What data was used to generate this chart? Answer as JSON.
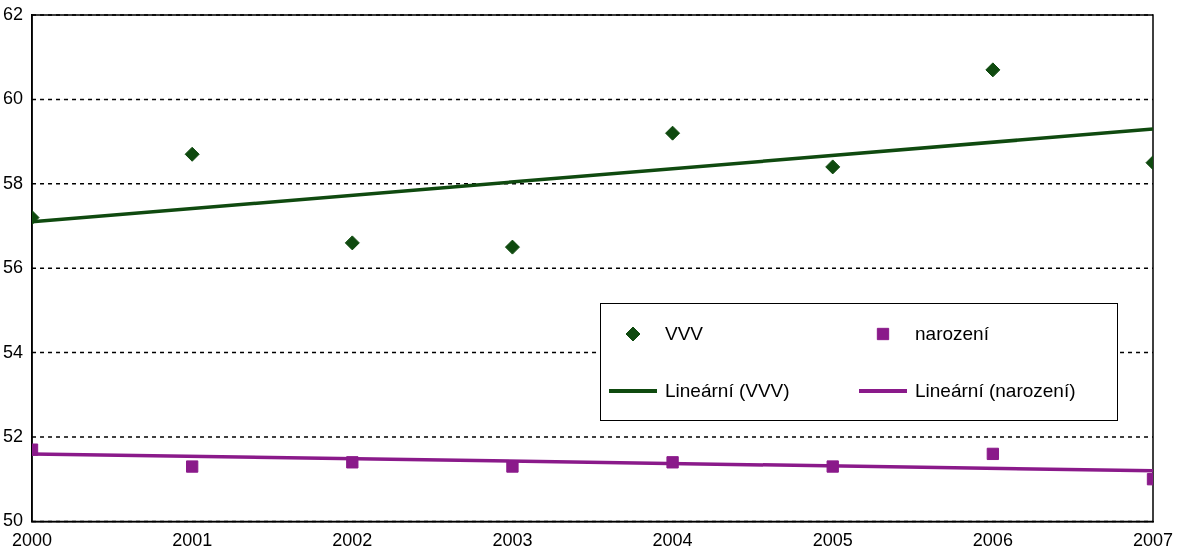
{
  "chart_data": {
    "type": "scatter",
    "xlim": [
      2000,
      2007
    ],
    "xticks": [
      2000,
      2001,
      2002,
      2003,
      2004,
      2005,
      2006,
      2007
    ],
    "ylim": [
      50,
      62
    ],
    "yticks": [
      50,
      52,
      54,
      56,
      58,
      60,
      62
    ],
    "grid": "y",
    "legend": "bottom right",
    "series": [
      {
        "name": "VVV",
        "type": "scatter",
        "marker": "diamond",
        "color": "#0f4a0f",
        "x": [
          2000,
          2001,
          2002,
          2003,
          2004,
          2005,
          2006,
          2007
        ],
        "values": [
          57.2,
          58.7,
          56.6,
          56.5,
          59.2,
          58.4,
          60.7,
          58.5
        ]
      },
      {
        "name": "narození",
        "type": "scatter",
        "marker": "square",
        "color": "#8a1a8a",
        "x": [
          2000,
          2001,
          2002,
          2003,
          2004,
          2005,
          2006,
          2007
        ],
        "values": [
          51.7,
          51.3,
          51.4,
          51.3,
          51.4,
          51.3,
          51.6,
          51.0
        ]
      },
      {
        "name": "Lineární (VVV)",
        "type": "line",
        "marker": "none",
        "line_style": "solid",
        "color": "#0f4a0f",
        "x": [
          2000,
          2007
        ],
        "values": [
          57.1,
          59.3
        ]
      },
      {
        "name": "Lineární (narození)",
        "type": "line",
        "marker": "none",
        "line_style": "solid",
        "color": "#8a1a8a",
        "x": [
          2000,
          2007
        ],
        "values": [
          51.6,
          51.2
        ]
      }
    ]
  }
}
